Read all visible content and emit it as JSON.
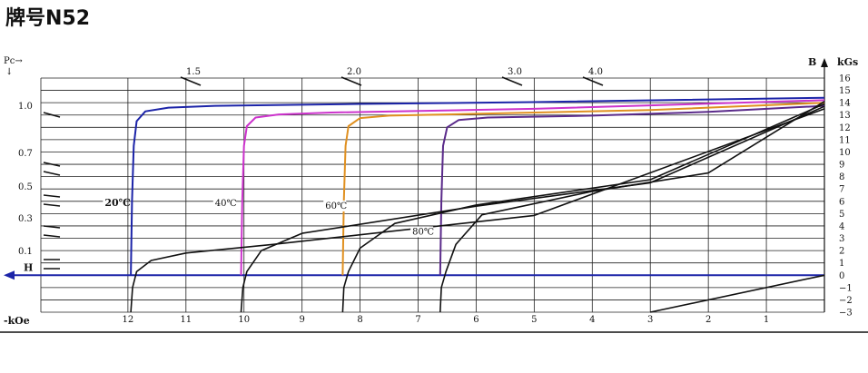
{
  "title": "牌号N52",
  "chart_data": {
    "type": "line",
    "title": "牌号N52",
    "x_axis": {
      "label": "-kOe",
      "unit": "kOe",
      "range": [
        -13.5,
        0
      ],
      "tick_labels": [
        "12",
        "11",
        "10",
        "9",
        "8",
        "7",
        "6",
        "5",
        "4",
        "3",
        "2",
        "1"
      ],
      "tick_values": [
        12,
        11,
        10,
        9,
        8,
        7,
        6,
        5,
        4,
        3,
        2,
        1
      ],
      "h_label": "H"
    },
    "y_axis": {
      "label": "kGs",
      "b_label": "B",
      "range": [
        -3,
        16
      ],
      "tick_labels": [
        "16",
        "15",
        "14",
        "13",
        "12",
        "11",
        "10",
        "9",
        "8",
        "7",
        "6",
        "5",
        "4",
        "3",
        "2",
        "1",
        "0",
        "−1",
        "−2",
        "−3"
      ],
      "tick_values": [
        16,
        15,
        14,
        13,
        12,
        11,
        10,
        9,
        8,
        7,
        6,
        5,
        4,
        3,
        2,
        1,
        0,
        -1,
        -2,
        -3
      ]
    },
    "pc_axis": {
      "label": "Pc→",
      "arrow": "↓",
      "left_labels": [
        "1.0",
        "0.7",
        "0.5",
        "0.3",
        "0.1"
      ],
      "top_labels": [
        "1.5",
        "2.0",
        "3.0",
        "4.0"
      ]
    },
    "grid": true,
    "series": [
      {
        "name": "20℃",
        "color": "#1c24a8",
        "kind": "J",
        "points": [
          [
            -11.95,
            0
          ],
          [
            -11.93,
            6
          ],
          [
            -11.9,
            10.5
          ],
          [
            -11.85,
            12.5
          ],
          [
            -11.7,
            13.3
          ],
          [
            -11.3,
            13.6
          ],
          [
            -10.5,
            13.75
          ],
          [
            -8,
            13.9
          ],
          [
            -5,
            14.05
          ],
          [
            0,
            14.4
          ]
        ]
      },
      {
        "name": "40℃",
        "color": "#cc33cc",
        "kind": "J",
        "points": [
          [
            -10.05,
            0
          ],
          [
            -10.03,
            6
          ],
          [
            -10,
            10.5
          ],
          [
            -9.95,
            12.1
          ],
          [
            -9.8,
            12.8
          ],
          [
            -9.4,
            13.05
          ],
          [
            -8.5,
            13.2
          ],
          [
            -5,
            13.5
          ],
          [
            0,
            14.2
          ]
        ]
      },
      {
        "name": "60℃",
        "color": "#e09020",
        "kind": "J",
        "points": [
          [
            -8.3,
            0
          ],
          [
            -8.28,
            6
          ],
          [
            -8.25,
            10.5
          ],
          [
            -8.2,
            12.1
          ],
          [
            -8,
            12.75
          ],
          [
            -7.5,
            12.95
          ],
          [
            -6,
            13.1
          ],
          [
            -3,
            13.4
          ],
          [
            0,
            14
          ]
        ]
      },
      {
        "name": "80℃",
        "color": "#5a2a8a",
        "kind": "J",
        "points": [
          [
            -6.62,
            0
          ],
          [
            -6.6,
            6
          ],
          [
            -6.57,
            10.5
          ],
          [
            -6.5,
            12
          ],
          [
            -6.3,
            12.6
          ],
          [
            -5.8,
            12.8
          ],
          [
            -4,
            12.95
          ],
          [
            -2,
            13.25
          ],
          [
            0,
            13.75
          ]
        ]
      },
      {
        "name": "20℃",
        "color": "#111111",
        "kind": "B",
        "points": [
          [
            -11.95,
            -3
          ],
          [
            -11.92,
            -1
          ],
          [
            -11.85,
            0.3
          ],
          [
            -11.6,
            1.2
          ],
          [
            -11,
            1.8
          ],
          [
            -9.5,
            2.5
          ],
          [
            -5,
            4.85
          ],
          [
            0,
            13.5
          ]
        ]
      },
      {
        "name": "40℃",
        "color": "#111111",
        "kind": "B",
        "points": [
          [
            -10.05,
            -3
          ],
          [
            -10.02,
            -1
          ],
          [
            -9.95,
            0.3
          ],
          [
            -9.7,
            2
          ],
          [
            -9,
            3.4
          ],
          [
            -6,
            5.6
          ],
          [
            -3,
            7.5
          ],
          [
            0,
            13.7
          ]
        ]
      },
      {
        "name": "60℃",
        "color": "#111111",
        "kind": "B",
        "points": [
          [
            -8.3,
            -3
          ],
          [
            -8.28,
            -1
          ],
          [
            -8.2,
            0.3
          ],
          [
            -8,
            2.2
          ],
          [
            -7.4,
            4.2
          ],
          [
            -6,
            5.7
          ],
          [
            -3,
            7.75
          ],
          [
            0,
            13.9
          ]
        ]
      },
      {
        "name": "80℃",
        "color": "#111111",
        "kind": "B",
        "points": [
          [
            -6.62,
            -3
          ],
          [
            -6.6,
            -1
          ],
          [
            -6.52,
            0.3
          ],
          [
            -6.35,
            2.5
          ],
          [
            -5.9,
            4.9
          ],
          [
            -4,
            6.8
          ],
          [
            -2,
            8.3
          ],
          [
            0,
            14.1
          ]
        ]
      },
      {
        "name": "",
        "color": "#111111",
        "kind": "recoil",
        "points": [
          [
            -3,
            -3
          ],
          [
            0,
            0
          ]
        ]
      }
    ],
    "temperature_labels": [
      {
        "text": "20℃",
        "x": -12.4,
        "y": 5.6
      },
      {
        "text": "40℃",
        "x": -10.5,
        "y": 5.6
      },
      {
        "text": "60℃",
        "x": -8.6,
        "y": 5.4
      },
      {
        "text": "80℃",
        "x": -7.1,
        "y": 3.3
      }
    ]
  }
}
